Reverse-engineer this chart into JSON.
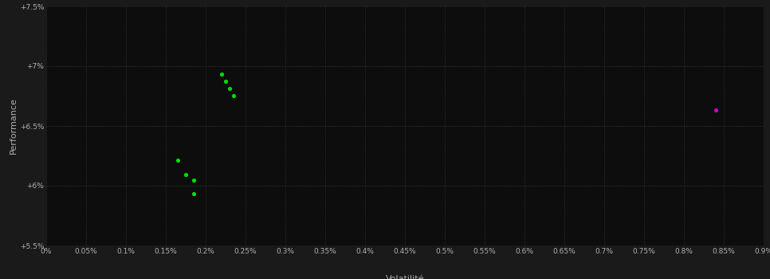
{
  "background_color": "#1a1a1a",
  "plot_bg_color": "#0d0d0d",
  "grid_color": "#2a2a2a",
  "text_color": "#b0b0b0",
  "xlabel": "Volatilité",
  "ylabel": "Performance",
  "xlim": [
    0.0,
    0.009
  ],
  "ylim": [
    0.055,
    0.075
  ],
  "xticks": [
    0.0,
    0.0005,
    0.001,
    0.0015,
    0.002,
    0.0025,
    0.003,
    0.0035,
    0.004,
    0.0045,
    0.005,
    0.0055,
    0.006,
    0.0065,
    0.007,
    0.0075,
    0.008,
    0.0085,
    0.009
  ],
  "xtick_labels": [
    "0%",
    "0.05%",
    "0.1%",
    "0.15%",
    "0.2%",
    "0.25%",
    "0.3%",
    "0.35%",
    "0.4%",
    "0.45%",
    "0.5%",
    "0.55%",
    "0.6%",
    "0.65%",
    "0.7%",
    "0.75%",
    "0.8%",
    "0.85%",
    "0.9%"
  ],
  "yticks": [
    0.055,
    0.06,
    0.065,
    0.07,
    0.075
  ],
  "ytick_labels": [
    "+5.5%",
    "+6%",
    "+6.5%",
    "+7%",
    "+7.5%"
  ],
  "green_points": [
    [
      0.0022,
      0.06935
    ],
    [
      0.00225,
      0.06875
    ],
    [
      0.0023,
      0.06815
    ],
    [
      0.00235,
      0.0675
    ],
    [
      0.00165,
      0.0621
    ],
    [
      0.00175,
      0.06095
    ],
    [
      0.00185,
      0.06045
    ],
    [
      0.00185,
      0.05935
    ]
  ],
  "magenta_points": [
    [
      0.0084,
      0.0663
    ]
  ],
  "point_size": 14
}
